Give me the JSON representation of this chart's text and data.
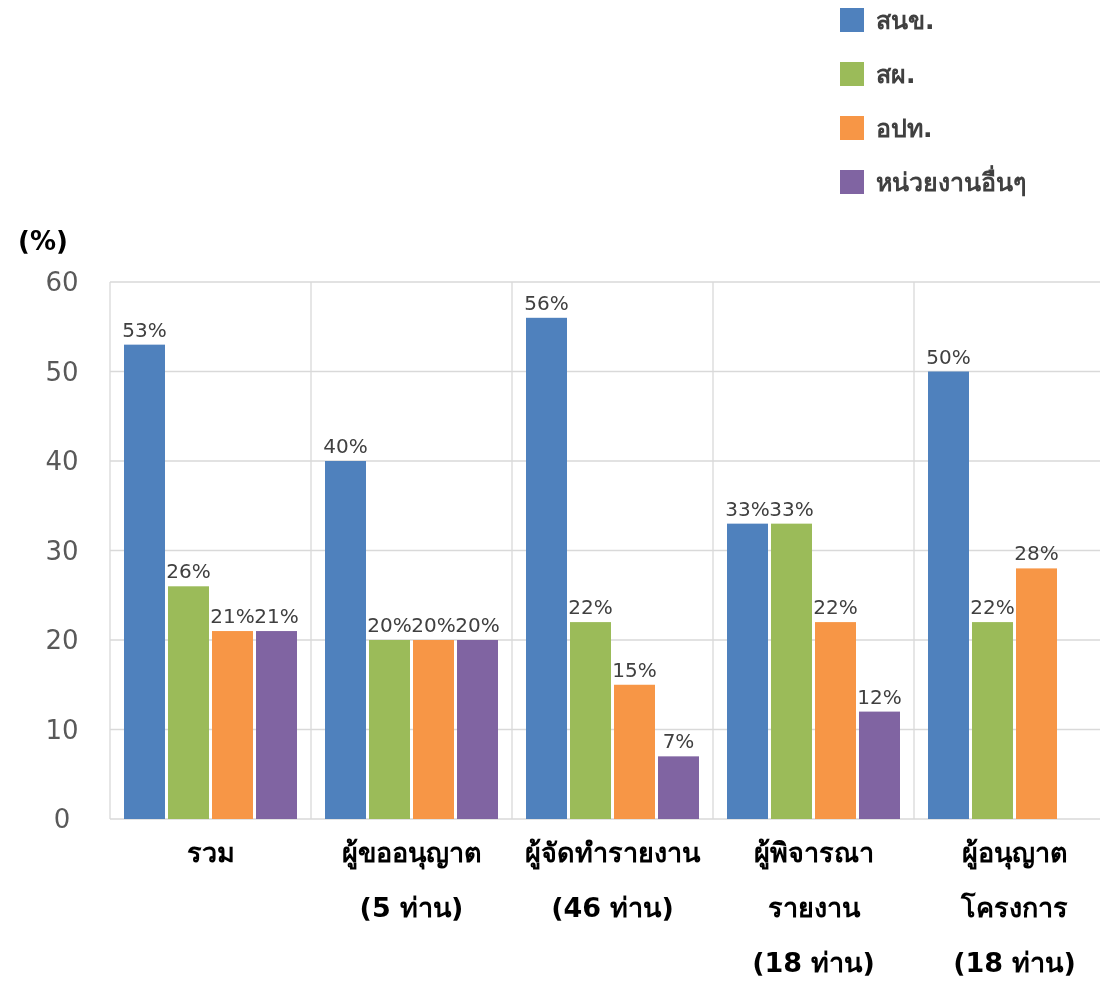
{
  "chart_data": {
    "type": "bar",
    "ylabel": "(%)",
    "categories": [
      "รวม",
      "ผู้ขออนุญาต\n(5 ท่าน)",
      "ผู้จัดทำรายงาน\n(46 ท่าน)",
      "ผู้พิจารณา\nรายงาน\n(18 ท่าน)",
      "ผู้อนุญาต\nโครงการ\n(18 ท่าน)"
    ],
    "series": [
      {
        "name": "สนข.",
        "color": "#4f81bd",
        "values": [
          53,
          40,
          56,
          33,
          50
        ],
        "value_labels": [
          "53%",
          "40%",
          "56%",
          "33%",
          "50%"
        ]
      },
      {
        "name": "สผ.",
        "color": "#9bbb59",
        "values": [
          26,
          20,
          22,
          33,
          22
        ],
        "value_labels": [
          "26%",
          "20%",
          "22%",
          "33%",
          "22%"
        ]
      },
      {
        "name": "อปท.",
        "color": "#f79646",
        "values": [
          21,
          20,
          15,
          22,
          28
        ],
        "value_labels": [
          "21%",
          "20%",
          "15%",
          "22%",
          "28%"
        ]
      },
      {
        "name": "หน่วยงานอื่นๆ",
        "color": "#8064a2",
        "values": [
          21,
          20,
          7,
          12,
          null
        ],
        "value_labels": [
          "21%",
          "20%",
          "7%",
          "12%",
          null
        ]
      }
    ],
    "ylim": [
      0,
      60
    ],
    "yticks": [
      0,
      10,
      20,
      30,
      40,
      50,
      60
    ],
    "grid": true,
    "legend": "top right"
  }
}
